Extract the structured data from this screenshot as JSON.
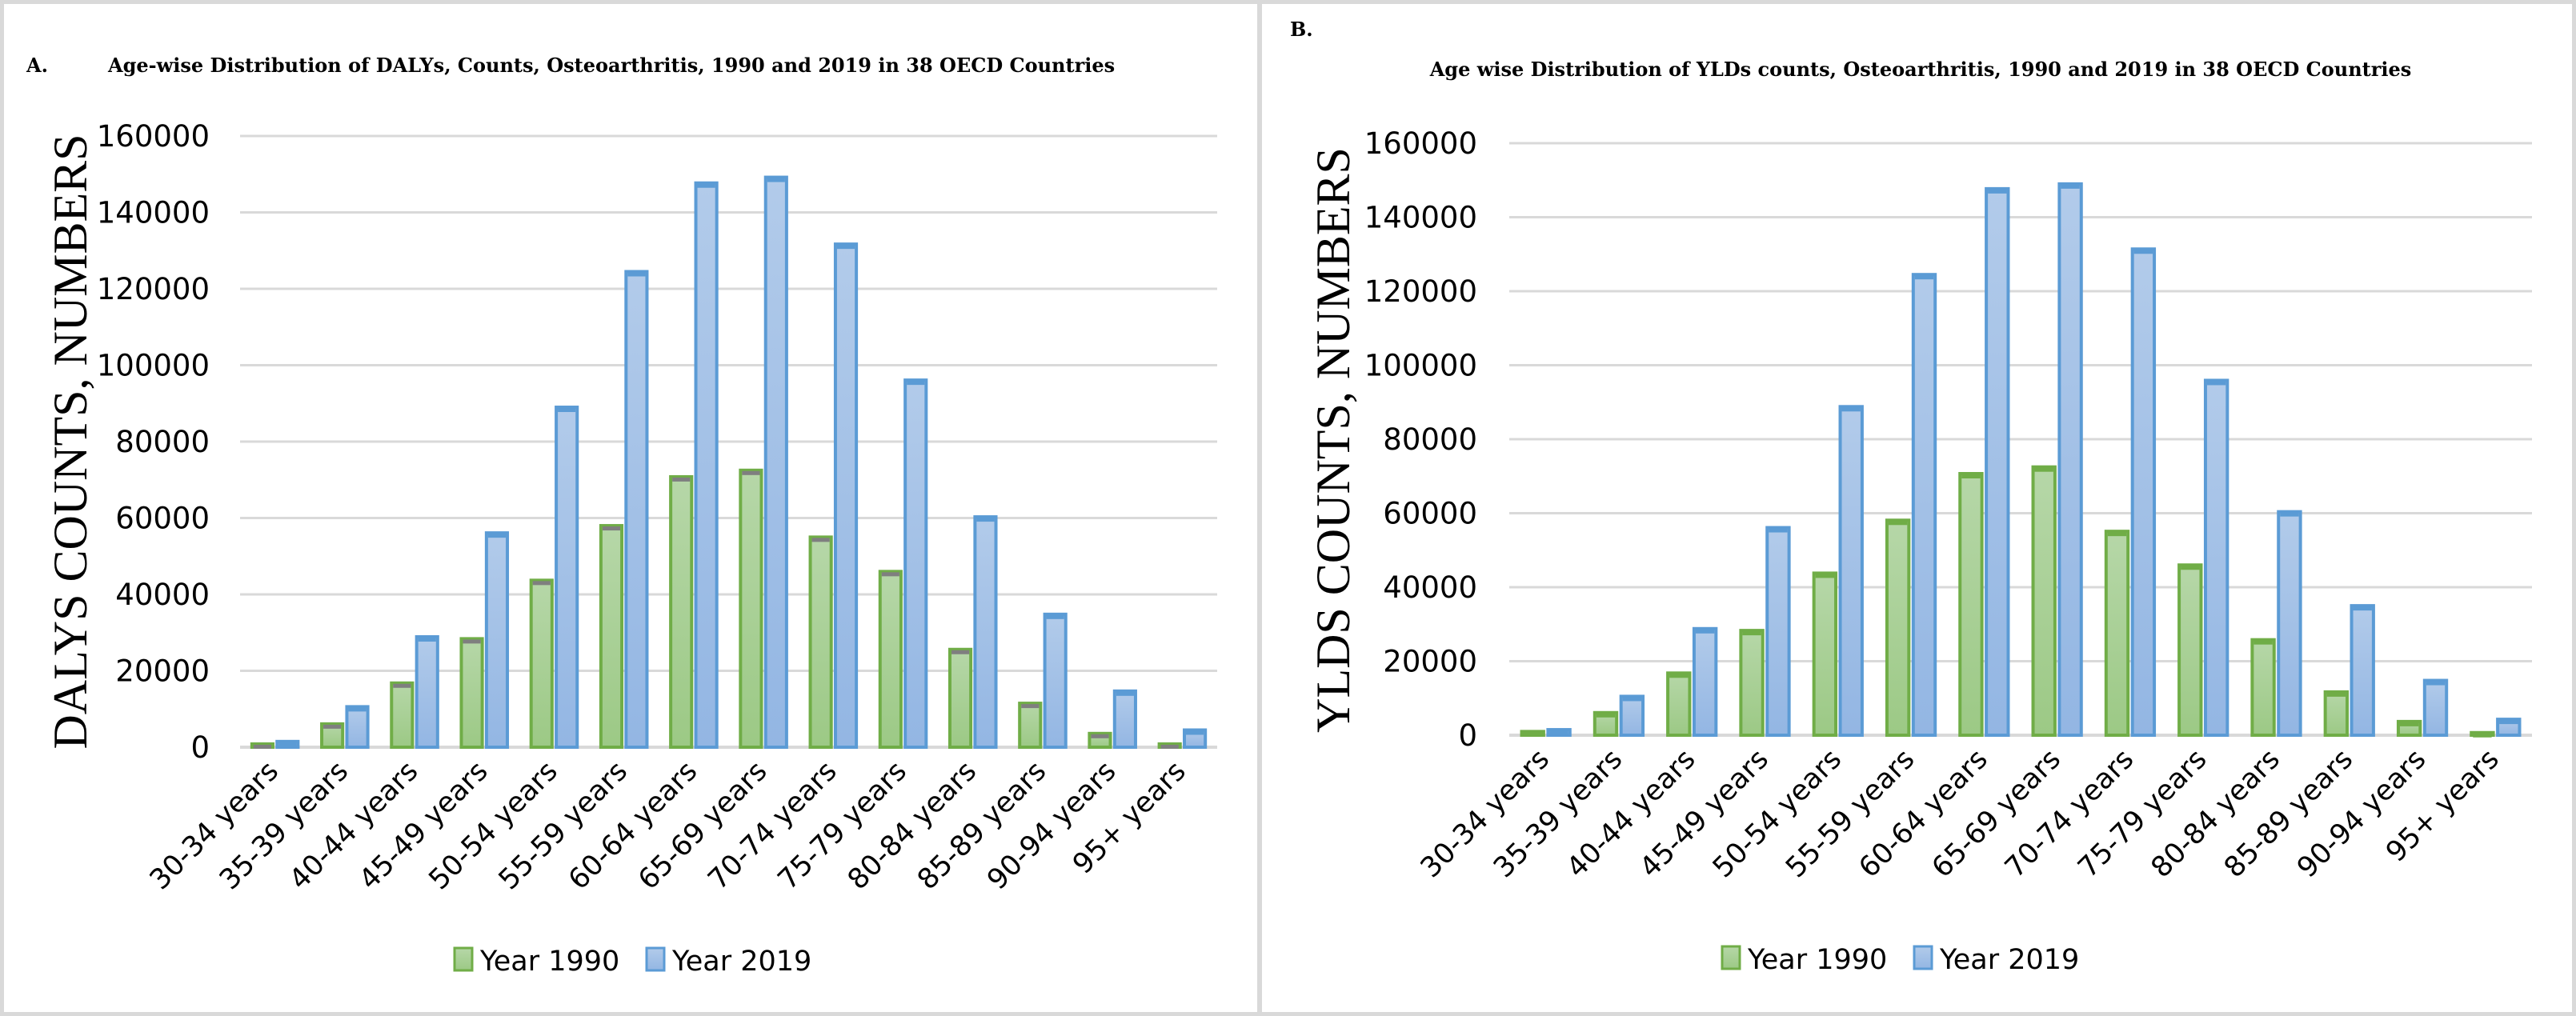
{
  "colors": {
    "year1990_fill_top": "#b6d7a8",
    "year1990_fill_bottom": "#9cc985",
    "year1990_border": "#70ad47",
    "year1990_cap": "#7f7f7f",
    "year2019_fill_top": "#b2cbea",
    "year2019_fill_bottom": "#93b6e3",
    "year2019_border": "#5b9bd5"
  },
  "chart_data": [
    {
      "panel_label": "A.",
      "type": "bar",
      "title": "Age-wise Distribution of DALYs, Counts, Osteoarthritis, 1990 and 2019 in 38 OECD Countries",
      "xlabel": "",
      "ylabel": "DALYS COUNTS, NUMBERS",
      "ylim": [
        0,
        160000
      ],
      "yticks": [
        0,
        20000,
        40000,
        60000,
        80000,
        100000,
        120000,
        140000,
        160000
      ],
      "ytick_labels": [
        "0",
        "20000",
        "40000",
        "60000",
        "80000",
        "100000",
        "120000",
        "140000",
        "160000"
      ],
      "grid": true,
      "legend_position": "bottom",
      "categories": [
        "30-34 years",
        "35-39 years",
        "40-44 years",
        "45-49 years",
        "50-54 years",
        "55-59 years",
        "60-64 years",
        "65-69 years",
        "70-74 years",
        "75-79 years",
        "80-84 years",
        "85-89 years",
        "90-94 years",
        "95+ years"
      ],
      "series": [
        {
          "name": "Year 1990",
          "values": [
            850,
            6100,
            16800,
            28400,
            43700,
            58000,
            70800,
            72500,
            55000,
            46000,
            25600,
            11500,
            3600,
            850
          ]
        },
        {
          "name": "Year 2019",
          "values": [
            1500,
            10600,
            28900,
            56100,
            89000,
            124500,
            147700,
            149200,
            131700,
            96100,
            60300,
            34800,
            14700,
            4500
          ]
        }
      ]
    },
    {
      "panel_label": "B.",
      "type": "bar",
      "title": "Age wise Distribution of YLDs counts, Osteoarthritis, 1990 and 2019 in 38 OECD Countries",
      "xlabel": "",
      "ylabel": "YLDS COUNTS, NUMBERS",
      "ylim": [
        0,
        160000
      ],
      "yticks": [
        0,
        20000,
        40000,
        60000,
        80000,
        100000,
        120000,
        140000,
        160000
      ],
      "ytick_labels": [
        "0",
        "20000",
        "40000",
        "60000",
        "80000",
        "100000",
        "120000",
        "140000",
        "160000"
      ],
      "grid": true,
      "legend_position": "bottom",
      "categories": [
        "30-34 years",
        "35-39 years",
        "40-44 years",
        "45-49 years",
        "50-54 years",
        "55-59 years",
        "60-64 years",
        "65-69 years",
        "70-74 years",
        "75-79 years",
        "80-84 years",
        "85-89 years",
        "90-94 years",
        "95+ years"
      ],
      "series": [
        {
          "name": "Year 1990",
          "values": [
            1000,
            6100,
            16800,
            28300,
            43800,
            58100,
            70700,
            72500,
            55100,
            46000,
            25800,
            11700,
            3700,
            700
          ]
        },
        {
          "name": "Year 2019",
          "values": [
            1500,
            10500,
            28800,
            56100,
            88800,
            124500,
            147700,
            149000,
            131400,
            95900,
            60400,
            35000,
            14800,
            4300
          ]
        }
      ]
    }
  ]
}
